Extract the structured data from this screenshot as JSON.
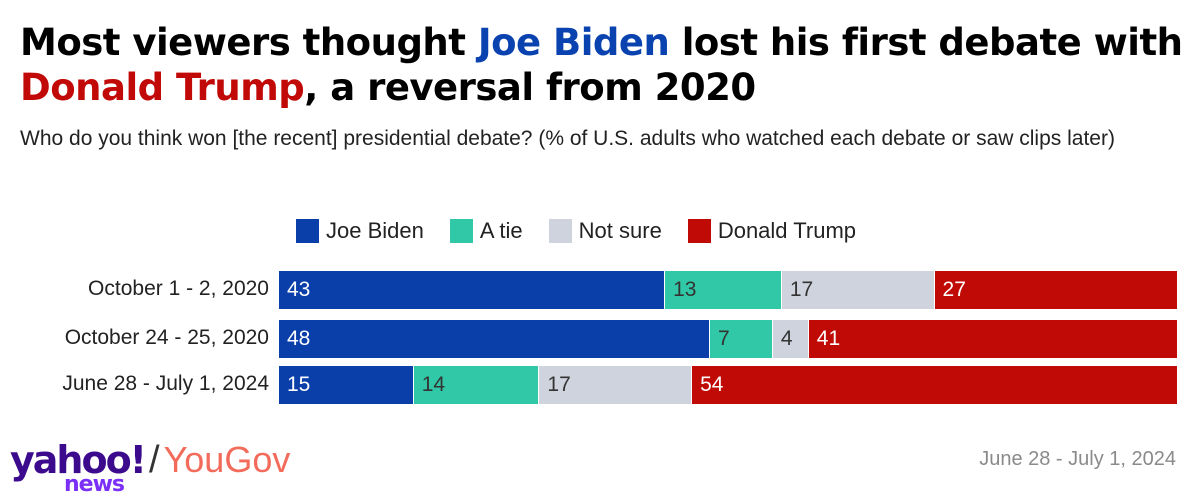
{
  "title": {
    "part1": "Most viewers thought ",
    "biden": "Joe Biden",
    "part2": " lost his first debate with ",
    "trump": "Donald Trump",
    "part3": ", a reversal from 2020"
  },
  "subtitle": "Who do you think won [the recent] presidential debate? (% of U.S. adults who watched each debate or saw clips later)",
  "footer": {
    "brand_yahoo": "yahoo!",
    "brand_news": "news",
    "brand_sep": "/",
    "brand_yougov": "YouGov",
    "date": "June 28 - July 1, 2024"
  },
  "colors": {
    "biden": "#0a3faa",
    "tie": "#30c8a6",
    "not_sure": "#cfd3dd",
    "trump": "#c00a05"
  },
  "chart_data": {
    "type": "bar",
    "orientation": "horizontal",
    "stacked": true,
    "title": "Most viewers thought Joe Biden lost his first debate with Donald Trump, a reversal from 2020",
    "subtitle": "Who do you think won [the recent] presidential debate? (% of U.S. adults who watched each debate or saw clips later)",
    "xlabel": "",
    "ylabel": "",
    "legend_position": "top",
    "categories": [
      "October 1 - 2, 2020",
      "October 24 - 25, 2020",
      "June 28 - July 1, 2024"
    ],
    "series": [
      {
        "name": "Joe Biden",
        "color": "#0a3faa",
        "label_color": "#ffffff",
        "values": [
          43,
          48,
          15
        ]
      },
      {
        "name": "A tie",
        "color": "#30c8a6",
        "label_color": "#333333",
        "values": [
          13,
          7,
          14
        ]
      },
      {
        "name": "Not sure",
        "color": "#cfd3dd",
        "label_color": "#333333",
        "values": [
          17,
          4,
          17
        ]
      },
      {
        "name": "Donald Trump",
        "color": "#c00a05",
        "label_color": "#ffffff",
        "values": [
          27,
          41,
          54
        ]
      }
    ]
  }
}
